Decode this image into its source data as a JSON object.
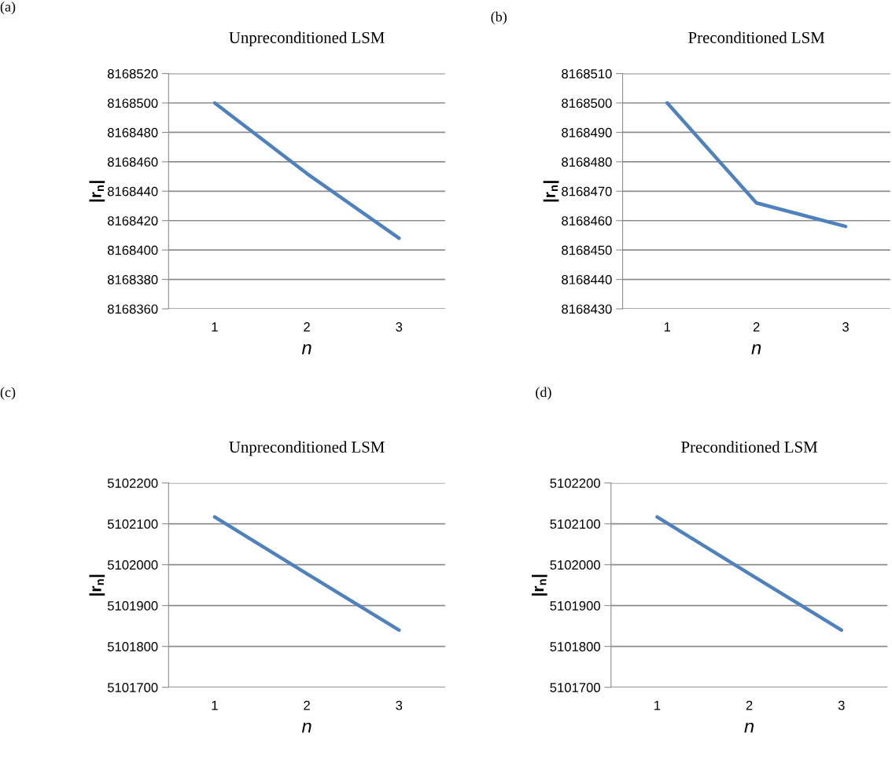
{
  "chart_data": [
    {
      "type": "line",
      "title": "Unpreconditioned LSM",
      "xlabel": "n",
      "ylabel": "|r$_{n}$|",
      "annotations": [
        "(a)"
      ],
      "categories": [
        "1",
        "2",
        "3"
      ],
      "series": [
        {
          "color": "#4f81bd",
          "values": [
            8168500,
            8168452,
            8168408
          ]
        }
      ],
      "ylim": [
        8168360,
        8168520
      ],
      "yticks": [
        8168360,
        8168380,
        8168400,
        8168420,
        8168440,
        8168460,
        8168480,
        8168500,
        8168520
      ],
      "grid": "y"
    },
    {
      "type": "line",
      "title": "Preconditioned LSM",
      "xlabel": "n",
      "ylabel": "|r$_{n}$|",
      "annotations": [
        "(b)"
      ],
      "categories": [
        "1",
        "2",
        "3"
      ],
      "series": [
        {
          "color": "#4f81bd",
          "values": [
            8168500,
            8168466,
            8168458
          ]
        }
      ],
      "ylim": [
        8168430,
        8168510
      ],
      "yticks": [
        8168430,
        8168440,
        8168450,
        8168460,
        8168470,
        8168480,
        8168490,
        8168500,
        8168510
      ],
      "grid": "y"
    },
    {
      "type": "line",
      "title": "Unpreconditioned LSM",
      "xlabel": "n",
      "ylabel": "|r$_{n}$|",
      "annotations": [
        "(c)"
      ],
      "categories": [
        "1",
        "2",
        "3"
      ],
      "series": [
        {
          "color": "#4f81bd",
          "values": [
            5102117,
            5101978,
            5101840
          ]
        }
      ],
      "ylim": [
        5101700,
        5102200
      ],
      "yticks": [
        5101700,
        5101800,
        5101900,
        5102000,
        5102100,
        5102200
      ],
      "grid": "y"
    },
    {
      "type": "line",
      "title": "Preconditioned LSM",
      "xlabel": "n",
      "ylabel": "|r$_{n}$|",
      "annotations": [
        "(d)"
      ],
      "categories": [
        "1",
        "2",
        "3"
      ],
      "series": [
        {
          "color": "#4f81bd",
          "values": [
            5102117,
            5101978,
            5101840
          ]
        }
      ],
      "ylim": [
        5101700,
        5102200
      ],
      "yticks": [
        5101700,
        5101800,
        5101900,
        5102000,
        5102100,
        5102200
      ],
      "grid": "y"
    }
  ]
}
